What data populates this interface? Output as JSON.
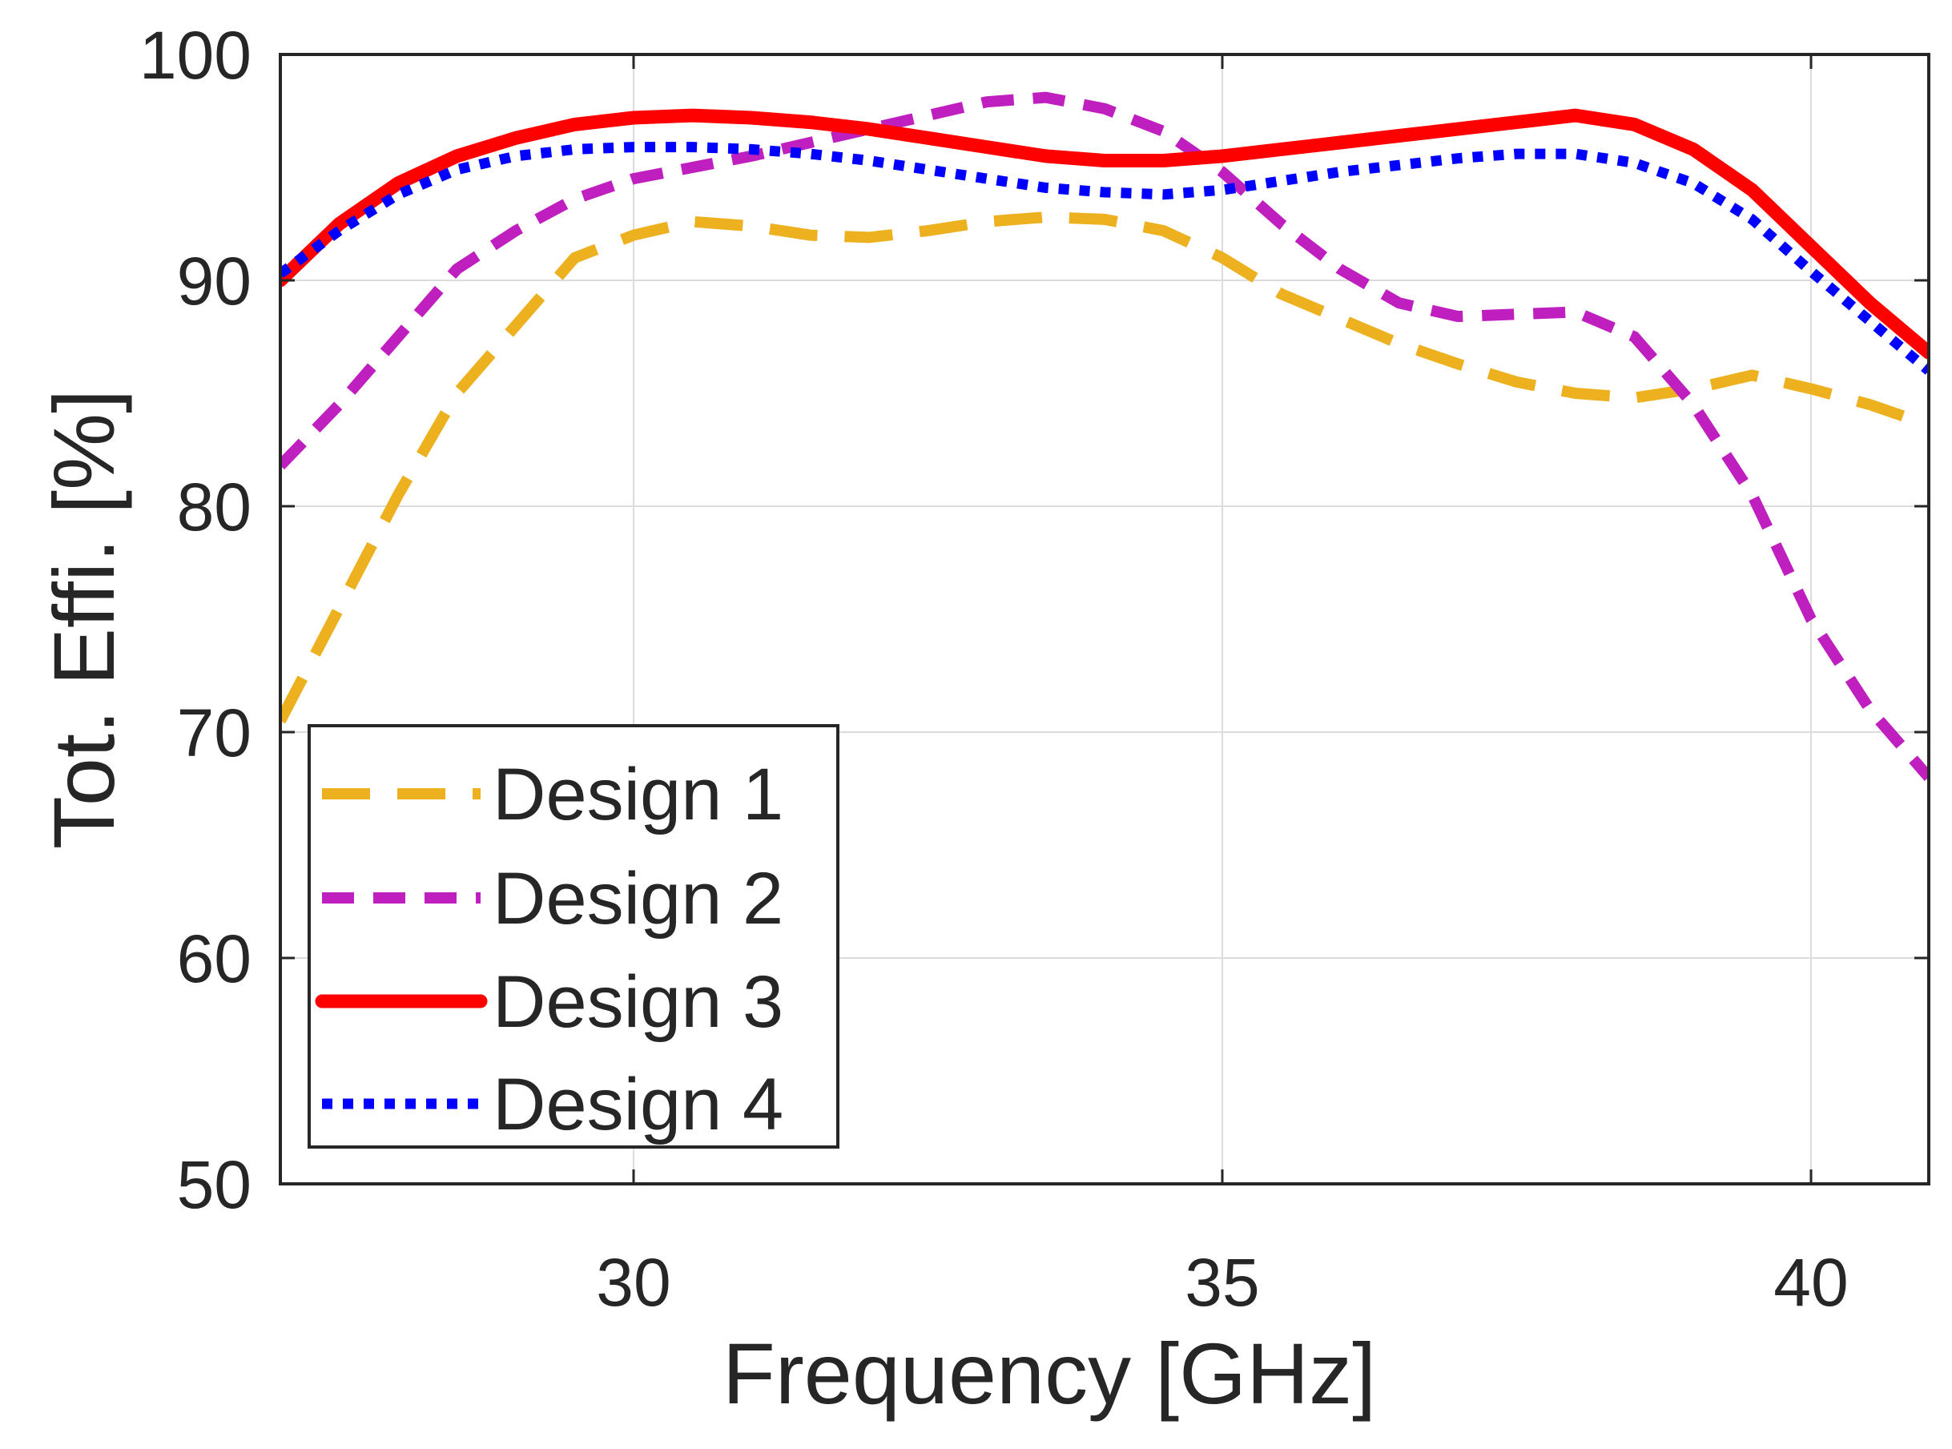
{
  "chart_data": {
    "type": "line",
    "xlabel": "Frequency [GHz]",
    "ylabel": "Tot. Effi. [%]",
    "xlim": [
      27,
      41
    ],
    "ylim": [
      50,
      100
    ],
    "xticks": [
      30,
      35,
      40
    ],
    "yticks": [
      50,
      60,
      70,
      80,
      90,
      100
    ],
    "grid": true,
    "legend_position": "bottom-left",
    "series": [
      {
        "name": "Design 1",
        "color": "#EDB120",
        "style": "long-dash",
        "x": [
          27,
          27.5,
          28,
          28.5,
          29,
          29.5,
          30,
          30.5,
          31,
          31.5,
          32,
          32.5,
          33,
          33.5,
          34,
          34.5,
          35,
          35.5,
          36,
          36.5,
          37,
          37.5,
          38,
          38.5,
          39,
          39.5,
          40,
          40.5,
          41
        ],
        "y": [
          70.5,
          75.5,
          80.5,
          85,
          88,
          91,
          92,
          92.6,
          92.4,
          92,
          91.9,
          92.2,
          92.6,
          92.8,
          92.7,
          92.2,
          91,
          89.4,
          88.3,
          87.2,
          86.3,
          85.5,
          85,
          84.8,
          85.2,
          85.8,
          85.2,
          84.5,
          83.6
        ]
      },
      {
        "name": "Design 2",
        "color": "#BE1FBE",
        "style": "dash",
        "x": [
          27,
          27.5,
          28,
          28.5,
          29,
          29.5,
          30,
          30.5,
          31,
          31.5,
          32,
          32.5,
          33,
          33.5,
          34,
          34.5,
          35,
          35.5,
          36,
          36.5,
          37,
          37.5,
          38,
          38.5,
          39,
          39.5,
          40,
          40.5,
          41
        ],
        "y": [
          81.8,
          84.5,
          87.5,
          90.5,
          92.2,
          93.6,
          94.5,
          95,
          95.5,
          96.1,
          96.7,
          97.3,
          97.9,
          98.1,
          97.6,
          96.6,
          94.8,
          92.5,
          90.5,
          89,
          88.4,
          88.5,
          88.6,
          87.5,
          84.5,
          80.5,
          75,
          71,
          68
        ]
      },
      {
        "name": "Design 3",
        "color": "#FF0000",
        "style": "solid",
        "x": [
          27,
          27.5,
          28,
          28.5,
          29,
          29.5,
          30,
          30.5,
          31,
          31.5,
          32,
          32.5,
          33,
          33.5,
          34,
          34.5,
          35,
          35.5,
          36,
          36.5,
          37,
          37.5,
          38,
          38.5,
          39,
          39.5,
          40,
          40.5,
          41
        ],
        "y": [
          90,
          92.5,
          94.3,
          95.5,
          96.3,
          96.9,
          97.2,
          97.3,
          97.2,
          97,
          96.7,
          96.3,
          95.9,
          95.5,
          95.3,
          95.3,
          95.5,
          95.8,
          96.1,
          96.4,
          96.7,
          97,
          97.3,
          96.9,
          95.8,
          94,
          91.5,
          89,
          86.8
        ]
      },
      {
        "name": "Design 4",
        "color": "#0000FF",
        "style": "dot",
        "x": [
          27,
          27.5,
          28,
          28.5,
          29,
          29.5,
          30,
          30.5,
          31,
          31.5,
          32,
          32.5,
          33,
          33.5,
          34,
          34.5,
          35,
          35.5,
          36,
          36.5,
          37,
          37.5,
          38,
          38.5,
          39,
          39.5,
          40,
          40.5,
          41
        ],
        "y": [
          90.3,
          92.2,
          93.8,
          94.9,
          95.5,
          95.8,
          95.9,
          95.9,
          95.8,
          95.6,
          95.3,
          94.9,
          94.5,
          94.1,
          93.9,
          93.8,
          94,
          94.4,
          94.8,
          95.1,
          95.4,
          95.6,
          95.6,
          95.2,
          94.3,
          92.7,
          90.4,
          88.2,
          86
        ]
      }
    ]
  }
}
